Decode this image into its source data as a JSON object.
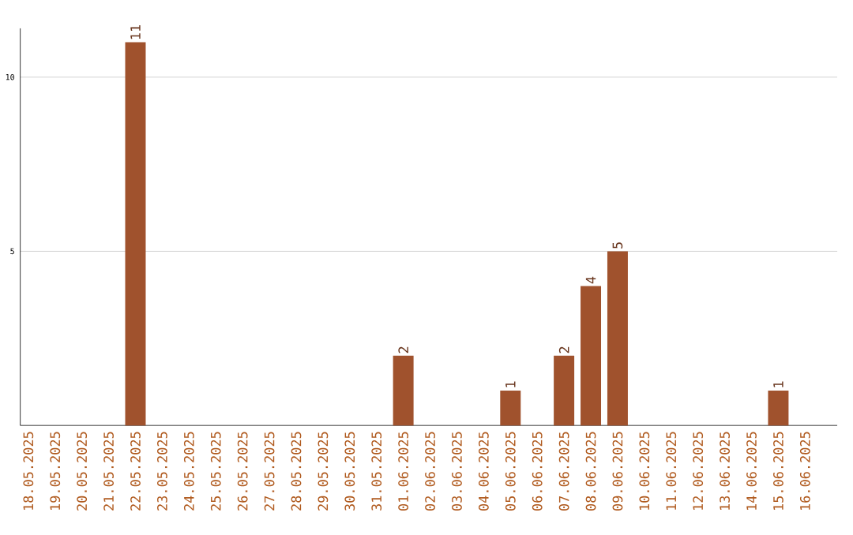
{
  "chart_data": {
    "type": "bar",
    "categories": [
      "18.05.2025",
      "19.05.2025",
      "20.05.2025",
      "21.05.2025",
      "22.05.2025",
      "23.05.2025",
      "24.05.2025",
      "25.05.2025",
      "26.05.2025",
      "27.05.2025",
      "28.05.2025",
      "29.05.2025",
      "30.05.2025",
      "31.05.2025",
      "01.06.2025",
      "02.06.2025",
      "03.06.2025",
      "04.06.2025",
      "05.06.2025",
      "06.06.2025",
      "07.06.2025",
      "08.06.2025",
      "09.06.2025",
      "10.06.2025",
      "11.06.2025",
      "12.06.2025",
      "13.06.2025",
      "14.06.2025",
      "15.06.2025",
      "16.06.2025"
    ],
    "values": [
      0,
      0,
      0,
      0,
      11,
      0,
      0,
      0,
      0,
      0,
      0,
      0,
      0,
      0,
      2,
      0,
      0,
      0,
      1,
      0,
      2,
      4,
      5,
      0,
      0,
      0,
      0,
      0,
      1,
      0
    ],
    "value_labels": [
      null,
      null,
      null,
      null,
      "11",
      null,
      null,
      null,
      null,
      null,
      null,
      null,
      null,
      null,
      "2",
      null,
      null,
      null,
      "1",
      null,
      "2",
      "4",
      "5",
      null,
      null,
      null,
      null,
      null,
      "1",
      null
    ],
    "color": "#a0522d",
    "ylim": [
      0,
      11.4
    ],
    "yticks": [
      5,
      10
    ],
    "grid": "y"
  }
}
